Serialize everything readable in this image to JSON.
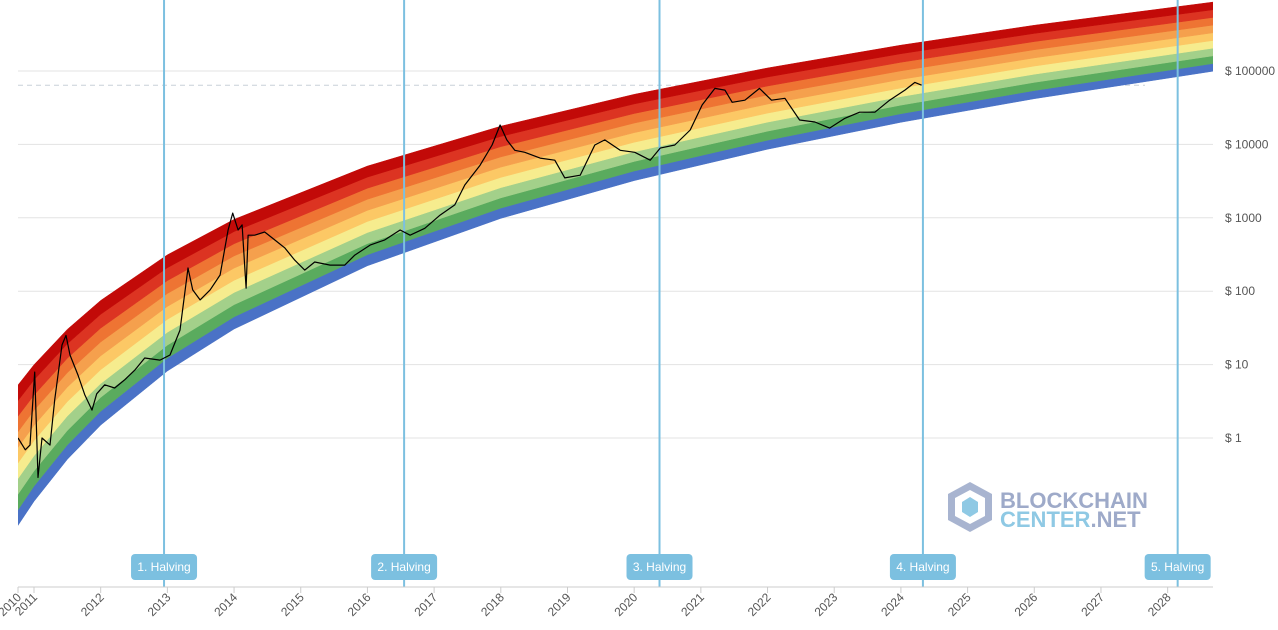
{
  "chart_data": {
    "type": "rainbow",
    "log_scale": true,
    "grid": true,
    "xlim": [
      2010.76,
      2028.68
    ],
    "xticks": [
      {
        "value": 2010.76,
        "label": "2010"
      },
      2011,
      2012,
      2013,
      2014,
      2015,
      2016,
      2017,
      2018,
      2019,
      2020,
      2021,
      2022,
      2023,
      2024,
      2025,
      2026,
      2027,
      2028
    ],
    "ylim": [
      0.01,
      1000000
    ],
    "yticks": [
      {
        "value": 1,
        "label": "$ 1"
      },
      {
        "value": 10,
        "label": "$ 10"
      },
      {
        "value": 100,
        "label": "$ 100"
      },
      {
        "value": 1000,
        "label": "$ 1000"
      },
      {
        "value": 10000,
        "label": "$ 10000"
      },
      {
        "value": 100000,
        "label": "$ 100000"
      }
    ],
    "band_colors": [
      "#4a72c6",
      "#5aab5e",
      "#a3d08a",
      "#f6ec8e",
      "#fcc865",
      "#f5a04d",
      "#ee7433",
      "#dc3422",
      "#c20a08"
    ],
    "band_x": [
      2010.76,
      2011,
      2011.5,
      2012,
      2013,
      2014,
      2016,
      2018,
      2020,
      2022,
      2024,
      2026,
      2028.68
    ],
    "band_floor": [
      0.0644,
      0.137,
      0.512,
      1.5,
      8.18,
      30.5,
      222,
      982,
      3210,
      8590,
      20000,
      41900,
      99300
    ],
    "band_ceiling": [
      5.27,
      9.95,
      30.2,
      74.8,
      313,
      951,
      5070,
      17700,
      48100,
      110000,
      225000,
      420000,
      869000
    ],
    "x": [
      2010.76,
      2010.87,
      2010.94,
      2011.01,
      2011.06,
      2011.12,
      2011.24,
      2011.31,
      2011.42,
      2011.48,
      2011.54,
      2011.66,
      2011.76,
      2011.87,
      2011.94,
      2012.06,
      2012.21,
      2012.36,
      2012.51,
      2012.66,
      2012.89,
      2013.04,
      2013.19,
      2013.31,
      2013.38,
      2013.49,
      2013.64,
      2013.79,
      2013.91,
      2013.98,
      2014.06,
      2014.12,
      2014.18,
      2014.21,
      2014.31,
      2014.46,
      2014.61,
      2014.76,
      2014.91,
      2015.06,
      2015.21,
      2015.44,
      2015.66,
      2015.81,
      2016.04,
      2016.26,
      2016.49,
      2016.64,
      2016.86,
      2017.09,
      2017.31,
      2017.46,
      2017.69,
      2017.87,
      2017.99,
      2018.09,
      2018.21,
      2018.36,
      2018.59,
      2018.81,
      2018.96,
      2019.19,
      2019.41,
      2019.56,
      2019.79,
      2020.01,
      2020.24,
      2020.39,
      2020.61,
      2020.84,
      2021.02,
      2021.21,
      2021.36,
      2021.47,
      2021.66,
      2021.88,
      2022.06,
      2022.26,
      2022.48,
      2022.71,
      2022.93,
      2023.16,
      2023.38,
      2023.61,
      2023.83,
      2024.06,
      2024.21,
      2024.31
    ],
    "series": [
      {
        "color": "#000000",
        "values": [
          1.0,
          0.69,
          0.8,
          7.9,
          0.29,
          1.0,
          0.8,
          3.3,
          18.5,
          25,
          13.5,
          7.2,
          3.9,
          2.4,
          4.0,
          5.3,
          4.8,
          6.2,
          8.4,
          12.3,
          11.5,
          13.5,
          29.5,
          207,
          104,
          76,
          104,
          166,
          683,
          1160,
          683,
          800,
          110,
          580,
          580,
          640,
          500,
          390,
          265,
          194,
          250,
          227,
          227,
          310,
          425,
          500,
          683,
          580,
          720,
          1090,
          1500,
          2800,
          5200,
          9800,
          18400,
          11500,
          8300,
          7800,
          6500,
          6100,
          3500,
          3800,
          9800,
          11500,
          8300,
          7800,
          6100,
          8900,
          9800,
          15700,
          34500,
          58000,
          55000,
          37500,
          40000,
          58000,
          40000,
          42500,
          21500,
          20200,
          16700,
          22700,
          27500,
          27500,
          40000,
          55000,
          70000,
          64000
        ]
      }
    ],
    "reference_line": 64000,
    "halving_color": "#7cc0e0",
    "annotations": [
      {
        "x": 2012.95,
        "label": "1. Halving"
      },
      {
        "x": 2016.55,
        "label": "2. Halving"
      },
      {
        "x": 2020.38,
        "label": "3. Halving"
      },
      {
        "x": 2024.33,
        "label": "4. Halving"
      },
      {
        "x": 2028.15,
        "label": "5. Halving"
      }
    ],
    "watermark": [
      "BLOCKCHAIN",
      "CENTER",
      ".NET"
    ]
  }
}
